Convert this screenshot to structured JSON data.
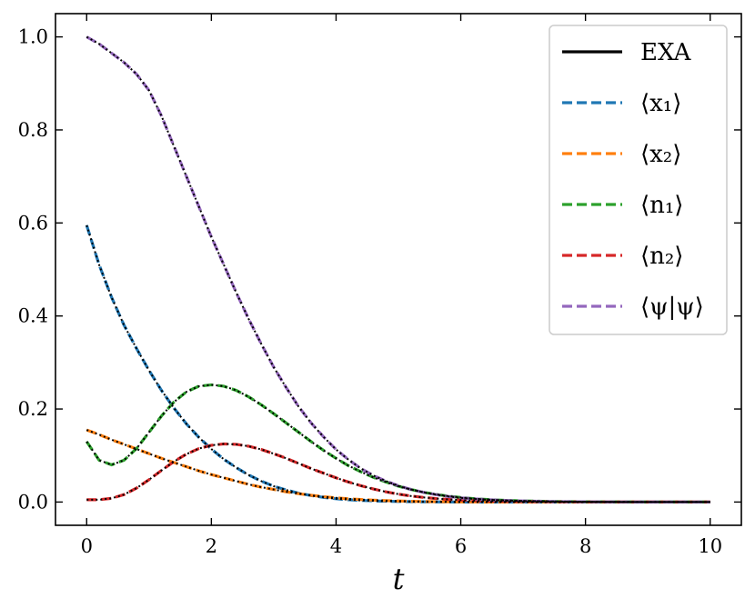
{
  "chart_data": {
    "type": "line",
    "xlabel": "t",
    "ylabel": "",
    "xlim": [
      -0.5,
      10.5
    ],
    "ylim": [
      -0.05,
      1.05
    ],
    "xticks": [
      0,
      2,
      4,
      6,
      8,
      10
    ],
    "xtick_labels": [
      "0",
      "2",
      "4",
      "6",
      "8",
      "10"
    ],
    "yticks": [
      0.0,
      0.2,
      0.4,
      0.6,
      0.8,
      1.0
    ],
    "ytick_labels": [
      "0.0",
      "0.2",
      "0.4",
      "0.6",
      "0.8",
      "1.0"
    ],
    "grid": false,
    "legend_position": "top-right",
    "x": [
      0,
      0.2,
      0.4,
      0.6,
      0.8,
      1.0,
      1.2,
      1.4,
      1.6,
      1.8,
      2.0,
      2.2,
      2.4,
      2.6,
      2.8,
      3.0,
      3.2,
      3.4,
      3.6,
      3.8,
      4.0,
      4.2,
      4.4,
      4.6,
      4.8,
      5.0,
      5.2,
      5.4,
      5.6,
      5.8,
      6.0,
      6.2,
      6.4,
      6.6,
      6.8,
      7.0,
      7.5,
      8.0,
      8.5,
      9.0,
      9.5,
      10.0
    ],
    "series": [
      {
        "name": "EXA",
        "style": "solid",
        "color": "#000000",
        "overlays": [
          "⟨x₁⟩",
          "⟨x₂⟩",
          "⟨n₁⟩",
          "⟨n₂⟩",
          "⟨ψ|ψ⟩"
        ]
      },
      {
        "name": "⟨x₁⟩",
        "style": "dashed",
        "color": "#1f77b4",
        "values": [
          0.595,
          0.51,
          0.44,
          0.38,
          0.33,
          0.283,
          0.24,
          0.202,
          0.168,
          0.139,
          0.114,
          0.092,
          0.074,
          0.058,
          0.045,
          0.034,
          0.026,
          0.019,
          0.014,
          0.01,
          0.007,
          0.005,
          0.0035,
          0.0025,
          0.0018,
          0.0012,
          0.0008,
          0.0005,
          0.0003,
          0.0002,
          0.0001,
          0,
          0,
          0,
          0,
          0,
          0,
          0,
          0,
          0,
          0,
          0
        ]
      },
      {
        "name": "⟨x₂⟩",
        "style": "dashed",
        "color": "#ff7f0e",
        "values": [
          0.155,
          0.145,
          0.134,
          0.124,
          0.114,
          0.104,
          0.094,
          0.085,
          0.076,
          0.067,
          0.059,
          0.052,
          0.045,
          0.038,
          0.032,
          0.027,
          0.022,
          0.018,
          0.0145,
          0.0115,
          0.009,
          0.007,
          0.0054,
          0.0041,
          0.003,
          0.0022,
          0.0016,
          0.0011,
          0.0008,
          0.0005,
          0.0003,
          0.0002,
          0.0001,
          0,
          0,
          0,
          0,
          0,
          0,
          0,
          0,
          0
        ]
      },
      {
        "name": "⟨n₁⟩",
        "style": "dashed",
        "color": "#2ca02c",
        "values": [
          0.13,
          0.09,
          0.08,
          0.09,
          0.115,
          0.15,
          0.185,
          0.215,
          0.237,
          0.249,
          0.252,
          0.249,
          0.24,
          0.226,
          0.209,
          0.19,
          0.17,
          0.15,
          0.13,
          0.111,
          0.094,
          0.078,
          0.065,
          0.053,
          0.043,
          0.034,
          0.027,
          0.021,
          0.0165,
          0.0128,
          0.0098,
          0.0075,
          0.0057,
          0.0043,
          0.0032,
          0.0024,
          0.0012,
          0.0006,
          0.0003,
          0.0001,
          0,
          0
        ]
      },
      {
        "name": "⟨n₂⟩",
        "style": "dashed",
        "color": "#d62728",
        "values": [
          0.005,
          0.005,
          0.008,
          0.016,
          0.03,
          0.048,
          0.068,
          0.087,
          0.103,
          0.115,
          0.122,
          0.125,
          0.124,
          0.12,
          0.113,
          0.104,
          0.094,
          0.083,
          0.072,
          0.062,
          0.052,
          0.043,
          0.035,
          0.028,
          0.022,
          0.017,
          0.013,
          0.01,
          0.0075,
          0.0056,
          0.0042,
          0.0031,
          0.0023,
          0.0017,
          0.0012,
          0.0009,
          0.0004,
          0.0002,
          0.0001,
          0,
          0,
          0
        ]
      },
      {
        "name": "⟨ψ|ψ⟩",
        "style": "dashed",
        "color": "#9467bd",
        "values": [
          1.0,
          0.985,
          0.965,
          0.945,
          0.92,
          0.885,
          0.83,
          0.765,
          0.7,
          0.635,
          0.57,
          0.51,
          0.45,
          0.393,
          0.34,
          0.29,
          0.246,
          0.205,
          0.17,
          0.14,
          0.113,
          0.091,
          0.072,
          0.057,
          0.045,
          0.035,
          0.027,
          0.021,
          0.016,
          0.012,
          0.009,
          0.007,
          0.0053,
          0.004,
          0.003,
          0.0022,
          0.001,
          0.0005,
          0.0002,
          0.0001,
          0,
          0
        ]
      }
    ]
  }
}
